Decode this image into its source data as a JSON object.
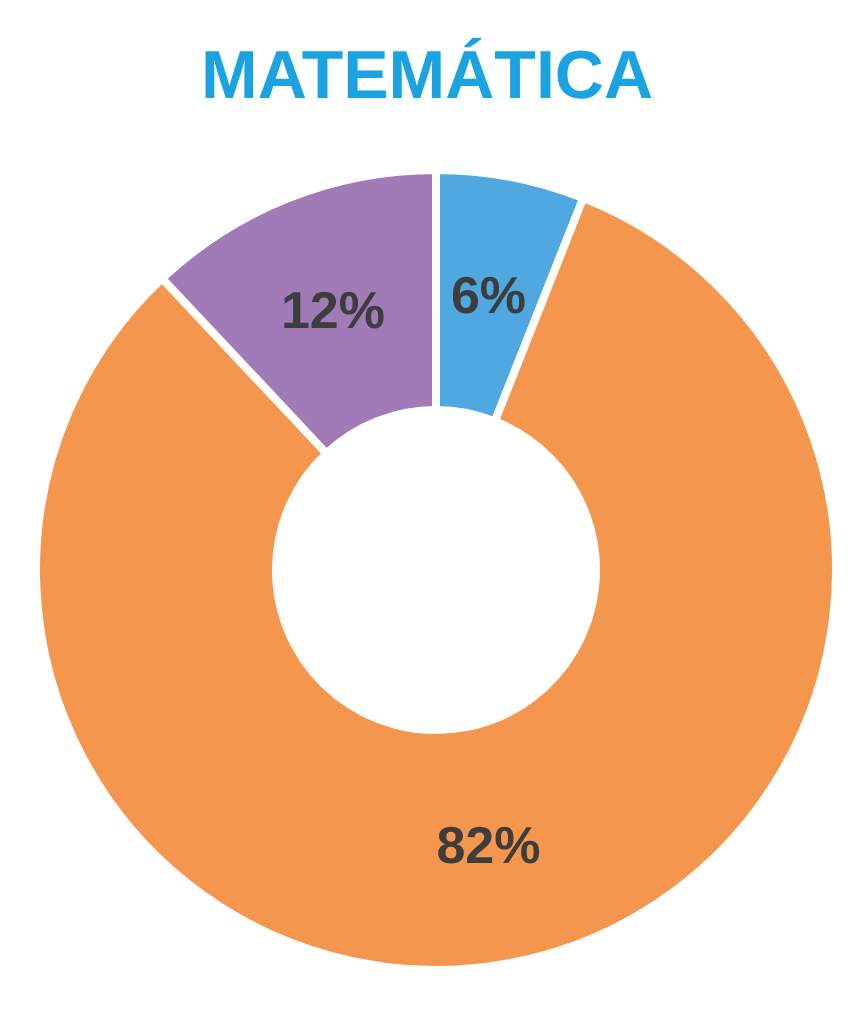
{
  "chart_data": {
    "type": "donut",
    "title": "MATEMÁTICA",
    "categories": [
      null,
      null,
      null
    ],
    "values": [
      6,
      82,
      12
    ],
    "colors": [
      "#4fa9e0",
      "#f5964f",
      "#a07bb8"
    ],
    "value_labels": [
      "6%",
      "82%",
      "12%"
    ],
    "legend": false
  }
}
